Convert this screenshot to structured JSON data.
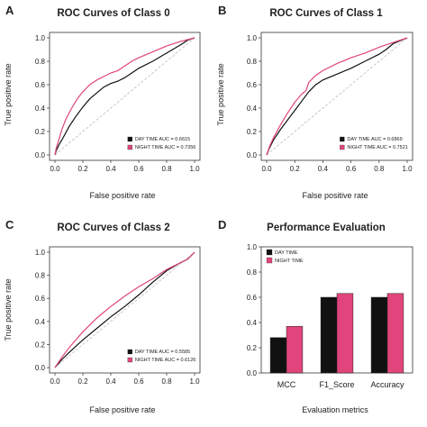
{
  "figure": {
    "panel_letters": [
      "A",
      "B",
      "C",
      "D"
    ]
  },
  "chart_data": [
    {
      "type": "line",
      "panel": "A",
      "title": "ROC Curves of Class 0",
      "xlabel": "False positive rate",
      "ylabel": "True positive rate",
      "xlim": [
        0,
        1
      ],
      "ylim": [
        0,
        1
      ],
      "ticks": [
        "0.0",
        "0.2",
        "0.4",
        "0.6",
        "0.8",
        "1.0"
      ],
      "tick_values": [
        0,
        0.2,
        0.4,
        0.6,
        0.8,
        1.0
      ],
      "diagonal": true,
      "legend_position": "bottom-right",
      "series": [
        {
          "name": "DAY TIME AUC = 0.6615",
          "color": "#111111",
          "points": [
            [
              0,
              0
            ],
            [
              0.01,
              0.04
            ],
            [
              0.03,
              0.09
            ],
            [
              0.06,
              0.15
            ],
            [
              0.1,
              0.24
            ],
            [
              0.15,
              0.33
            ],
            [
              0.2,
              0.41
            ],
            [
              0.25,
              0.48
            ],
            [
              0.3,
              0.53
            ],
            [
              0.35,
              0.58
            ],
            [
              0.4,
              0.61
            ],
            [
              0.45,
              0.63
            ],
            [
              0.5,
              0.66
            ],
            [
              0.55,
              0.7
            ],
            [
              0.6,
              0.74
            ],
            [
              0.7,
              0.8
            ],
            [
              0.8,
              0.87
            ],
            [
              0.9,
              0.94
            ],
            [
              0.95,
              0.98
            ],
            [
              1,
              1
            ]
          ]
        },
        {
          "name": "NIGHT TIME AUC = 0.7356",
          "color": "#e0457b",
          "points": [
            [
              0,
              0
            ],
            [
              0.01,
              0.06
            ],
            [
              0.03,
              0.14
            ],
            [
              0.05,
              0.22
            ],
            [
              0.08,
              0.31
            ],
            [
              0.12,
              0.4
            ],
            [
              0.16,
              0.48
            ],
            [
              0.2,
              0.54
            ],
            [
              0.25,
              0.6
            ],
            [
              0.3,
              0.64
            ],
            [
              0.35,
              0.67
            ],
            [
              0.4,
              0.7
            ],
            [
              0.45,
              0.72
            ],
            [
              0.5,
              0.76
            ],
            [
              0.55,
              0.8
            ],
            [
              0.6,
              0.83
            ],
            [
              0.7,
              0.88
            ],
            [
              0.8,
              0.93
            ],
            [
              0.9,
              0.97
            ],
            [
              1,
              1
            ]
          ]
        }
      ]
    },
    {
      "type": "line",
      "panel": "B",
      "title": "ROC Curves of Class 1",
      "xlabel": "False positive rate",
      "ylabel": "True positive rate",
      "xlim": [
        0,
        1
      ],
      "ylim": [
        0,
        1
      ],
      "ticks": [
        "0.0",
        "0.2",
        "0.4",
        "0.6",
        "0.8",
        "1.0"
      ],
      "tick_values": [
        0,
        0.2,
        0.4,
        0.6,
        0.8,
        1.0
      ],
      "diagonal": true,
      "legend_position": "bottom-right",
      "series": [
        {
          "name": "DAY TIME AUC = 0.6869",
          "color": "#111111",
          "points": [
            [
              0,
              0
            ],
            [
              0.02,
              0.06
            ],
            [
              0.05,
              0.13
            ],
            [
              0.1,
              0.22
            ],
            [
              0.15,
              0.3
            ],
            [
              0.2,
              0.38
            ],
            [
              0.25,
              0.46
            ],
            [
              0.3,
              0.54
            ],
            [
              0.35,
              0.6
            ],
            [
              0.4,
              0.64
            ],
            [
              0.5,
              0.69
            ],
            [
              0.6,
              0.74
            ],
            [
              0.7,
              0.8
            ],
            [
              0.8,
              0.86
            ],
            [
              0.85,
              0.9
            ],
            [
              0.9,
              0.95
            ],
            [
              1,
              1
            ]
          ]
        },
        {
          "name": "NIGHT TIME AUC = 0.7521",
          "color": "#e0457b",
          "points": [
            [
              0,
              0
            ],
            [
              0.02,
              0.07
            ],
            [
              0.05,
              0.15
            ],
            [
              0.1,
              0.26
            ],
            [
              0.15,
              0.36
            ],
            [
              0.2,
              0.45
            ],
            [
              0.25,
              0.52
            ],
            [
              0.28,
              0.55
            ],
            [
              0.3,
              0.62
            ],
            [
              0.35,
              0.68
            ],
            [
              0.4,
              0.72
            ],
            [
              0.5,
              0.78
            ],
            [
              0.6,
              0.83
            ],
            [
              0.7,
              0.87
            ],
            [
              0.8,
              0.92
            ],
            [
              0.9,
              0.96
            ],
            [
              1,
              1
            ]
          ]
        }
      ]
    },
    {
      "type": "line",
      "panel": "C",
      "title": "ROC Curves of Class 2",
      "xlabel": "False positive rate",
      "ylabel": "True positive rate",
      "xlim": [
        0,
        1
      ],
      "ylim": [
        0,
        1
      ],
      "ticks": [
        "0.0",
        "0.2",
        "0.4",
        "0.6",
        "0.8",
        "1.0"
      ],
      "tick_values": [
        0,
        0.2,
        0.4,
        0.6,
        0.8,
        1.0
      ],
      "diagonal": true,
      "legend_position": "bottom-right",
      "series": [
        {
          "name": "DAY TIME AUC = 0.5585",
          "color": "#111111",
          "points": [
            [
              0,
              0
            ],
            [
              0.05,
              0.07
            ],
            [
              0.1,
              0.13
            ],
            [
              0.2,
              0.24
            ],
            [
              0.3,
              0.34
            ],
            [
              0.4,
              0.44
            ],
            [
              0.5,
              0.53
            ],
            [
              0.6,
              0.63
            ],
            [
              0.7,
              0.74
            ],
            [
              0.8,
              0.84
            ],
            [
              0.9,
              0.91
            ],
            [
              0.95,
              0.94
            ],
            [
              1,
              1
            ]
          ]
        },
        {
          "name": "NIGHT TIME AUC = 0.6126",
          "color": "#e0457b",
          "points": [
            [
              0,
              0
            ],
            [
              0.05,
              0.09
            ],
            [
              0.1,
              0.17
            ],
            [
              0.2,
              0.31
            ],
            [
              0.3,
              0.43
            ],
            [
              0.4,
              0.53
            ],
            [
              0.5,
              0.62
            ],
            [
              0.6,
              0.7
            ],
            [
              0.7,
              0.77
            ],
            [
              0.8,
              0.85
            ],
            [
              0.9,
              0.91
            ],
            [
              0.95,
              0.94
            ],
            [
              1,
              1
            ]
          ]
        }
      ]
    },
    {
      "type": "bar",
      "panel": "D",
      "title": "Performance Evaluation",
      "xlabel": "Evaluation metrics",
      "ylabel": "",
      "ylim": [
        0,
        1
      ],
      "ticks": [
        "0.0",
        "0.2",
        "0.4",
        "0.6",
        "0.8",
        "1.0"
      ],
      "tick_values": [
        0,
        0.2,
        0.4,
        0.6,
        0.8,
        1.0
      ],
      "legend_position": "top-left",
      "categories": [
        "MCC",
        "F1_Score",
        "Accuracy"
      ],
      "series": [
        {
          "name": "DAY TIME",
          "color": "#111111",
          "values": [
            0.28,
            0.6,
            0.6
          ]
        },
        {
          "name": "NIGHT TIME",
          "color": "#e0457b",
          "values": [
            0.37,
            0.63,
            0.63
          ]
        }
      ]
    }
  ]
}
